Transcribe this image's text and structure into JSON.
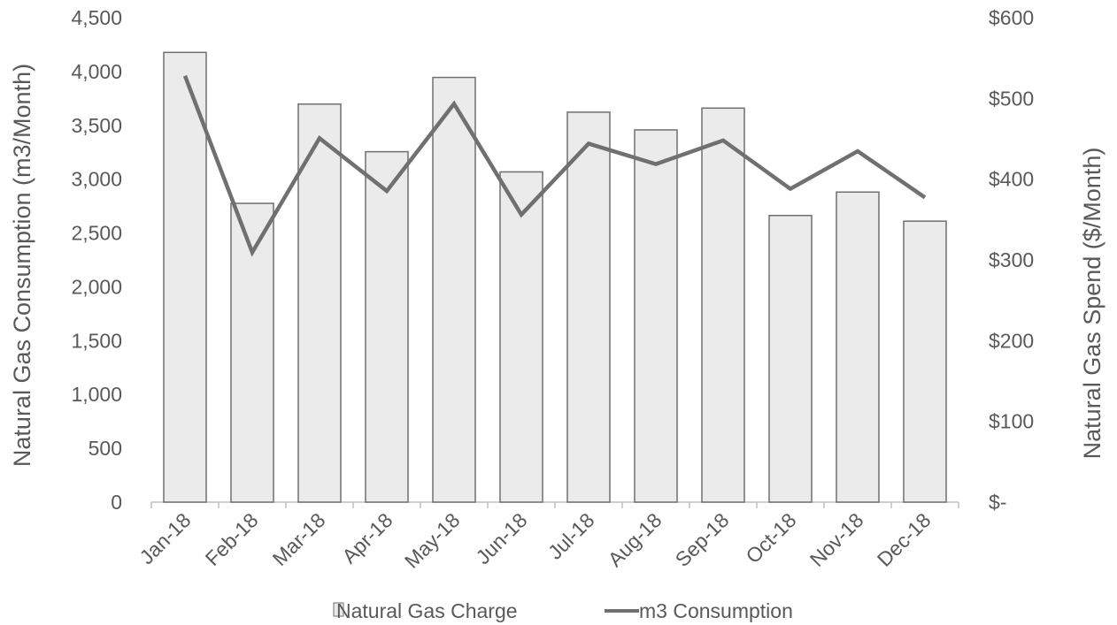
{
  "chart_data": {
    "type": "bar",
    "categories": [
      "Jan-18",
      "Feb-18",
      "Mar-18",
      "Apr-18",
      "May-18",
      "Jun-18",
      "Jul-18",
      "Aug-18",
      "Sep-18",
      "Oct-18",
      "Nov-18",
      "Dec-18"
    ],
    "series": [
      {
        "name": "Natural Gas Charge",
        "type": "bar",
        "axis": "right",
        "values": [
          557,
          370,
          493,
          434,
          526,
          409,
          483,
          461,
          488,
          355,
          384,
          348
        ]
      },
      {
        "name": "m3 Consumption",
        "type": "line",
        "axis": "left",
        "values": [
          3960,
          2320,
          3380,
          2890,
          3700,
          2670,
          3330,
          3140,
          3360,
          2910,
          3260,
          2830
        ]
      }
    ],
    "left_axis": {
      "label": "Natural Gas Consumption (m3/Month)",
      "range": [
        0,
        4500
      ],
      "ticks": [
        "0",
        "500",
        "1,000",
        "1,500",
        "2,000",
        "2,500",
        "3,000",
        "3,500",
        "4,000",
        "4,500"
      ]
    },
    "right_axis": {
      "label": "Natural Gas Spend ($/Month)",
      "range": [
        0,
        600
      ],
      "ticks": [
        "$-",
        "$100",
        "$200",
        "$300",
        "$400",
        "$500",
        "$600"
      ]
    },
    "grid": false,
    "legend_position": "bottom",
    "colors": {
      "bar_fill": "#ebebeb",
      "bar_stroke": "#6f6f6f",
      "line": "#707070",
      "text": "#595959",
      "axis": "#bfbfbf"
    }
  }
}
